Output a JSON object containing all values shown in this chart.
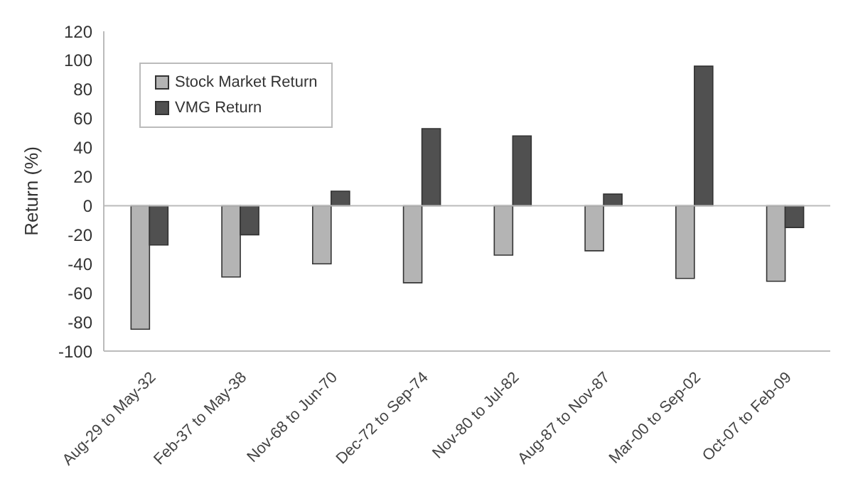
{
  "chart_data": {
    "type": "bar",
    "ylabel": "Return (%)",
    "categories": [
      "Aug-29 to May-32",
      "Feb-37 to May-38",
      "Nov-68 to Jun-70",
      "Dec-72 to Sep-74",
      "Nov-80 to Jul-82",
      "Aug-87 to Nov-87",
      "Mar-00 to Sep-02",
      "Oct-07 to Feb-09"
    ],
    "series": [
      {
        "name": "Stock Market Return",
        "color": "#b4b4b4",
        "values": [
          -85,
          -49,
          -40,
          -53,
          -34,
          -31,
          -50,
          -52
        ]
      },
      {
        "name": "VMG Return",
        "color": "#505050",
        "values": [
          -27,
          -20,
          10,
          53,
          48,
          8,
          96,
          -15
        ]
      }
    ],
    "ylim": [
      -100,
      120
    ],
    "yticks": [
      -100,
      -80,
      -60,
      -40,
      -20,
      0,
      20,
      40,
      60,
      80,
      100,
      120
    ],
    "grid": false,
    "ref_lines": [
      {
        "axis": "y",
        "value": 0,
        "color": "#bbbbbb"
      }
    ],
    "legend": "top left"
  }
}
